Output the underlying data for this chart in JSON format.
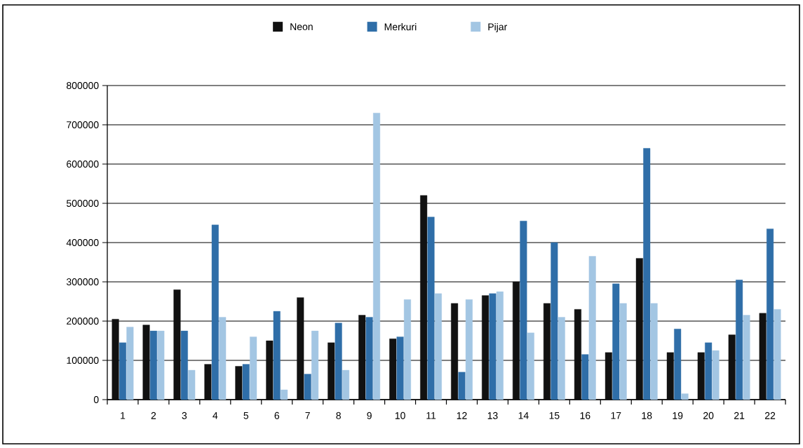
{
  "chart_data": {
    "type": "bar",
    "categories": [
      "1",
      "2",
      "3",
      "4",
      "5",
      "6",
      "7",
      "8",
      "9",
      "10",
      "11",
      "12",
      "13",
      "14",
      "15",
      "16",
      "17",
      "18",
      "19",
      "20",
      "21",
      "22"
    ],
    "series": [
      {
        "name": "Neon",
        "color": "#111111",
        "values": [
          205000,
          190000,
          280000,
          90000,
          85000,
          150000,
          260000,
          145000,
          215000,
          155000,
          520000,
          245000,
          265000,
          300000,
          245000,
          230000,
          120000,
          360000,
          120000,
          120000,
          165000,
          220000
        ]
      },
      {
        "name": "Merkuri",
        "color": "#2f6ea8",
        "values": [
          145000,
          175000,
          175000,
          445000,
          90000,
          225000,
          65000,
          195000,
          210000,
          160000,
          465000,
          70000,
          270000,
          455000,
          400000,
          115000,
          295000,
          640000,
          180000,
          145000,
          305000,
          435000
        ]
      },
      {
        "name": "Pijar",
        "color": "#a3c6e3",
        "values": [
          185000,
          175000,
          75000,
          210000,
          160000,
          25000,
          175000,
          75000,
          730000,
          255000,
          270000,
          255000,
          275000,
          170000,
          210000,
          365000,
          245000,
          245000,
          15000,
          125000,
          215000,
          230000
        ]
      }
    ],
    "ylim": [
      0,
      800000
    ],
    "yticks": [
      0,
      100000,
      200000,
      300000,
      400000,
      500000,
      600000,
      700000,
      800000
    ],
    "grid": "y",
    "legend": "top"
  }
}
